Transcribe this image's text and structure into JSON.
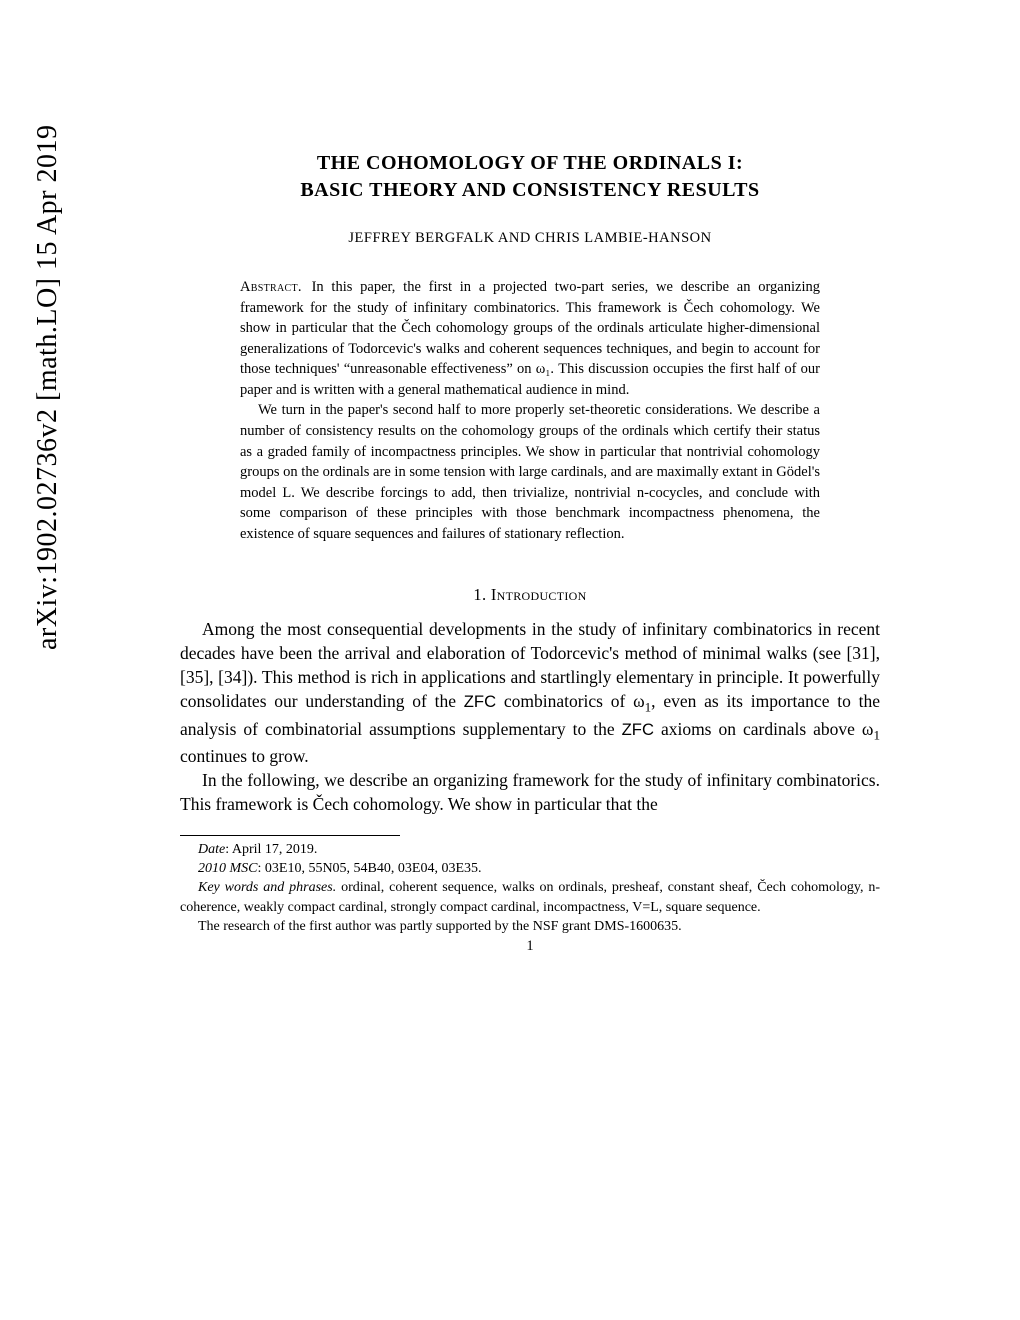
{
  "arxiv": {
    "id": "arXiv:1902.02736v2",
    "category": "[math.LO]",
    "date": "15 Apr 2019"
  },
  "title_line1": "THE COHOMOLOGY OF THE ORDINALS I:",
  "title_line2": "BASIC THEORY AND CONSISTENCY RESULTS",
  "authors": "JEFFREY BERGFALK AND CHRIS LAMBIE-HANSON",
  "abstract_label": "Abstract.",
  "abstract_p1": " In this paper, the first in a projected two-part series, we describe an organizing framework for the study of infinitary combinatorics. This framework is Čech cohomology. We show in particular that the Čech cohomology groups of the ordinals articulate higher-dimensional generalizations of Todorcevic's walks and coherent sequences techniques, and begin to account for those techniques' “unreasonable effectiveness” on ω₁. This discussion occupies the first half of our paper and is written with a general mathematical audience in mind.",
  "abstract_p2": "We turn in the paper's second half to more properly set-theoretic considerations. We describe a number of consistency results on the cohomology groups of the ordinals which certify their status as a graded family of incompactness principles. We show in particular that nontrivial cohomology groups on the ordinals are in some tension with large cardinals, and are maximally extant in Gödel's model L. We describe forcings to add, then trivialize, nontrivial n-cocycles, and conclude with some comparison of these principles with those benchmark incompactness phenomena, the existence of square sequences and failures of stationary reflection.",
  "section1_heading": "1. Introduction",
  "intro_p1_a": "Among the most consequential developments in the study of infinitary combinatorics in recent decades have been the arrival and elaboration of Todorcevic's method of minimal walks (see [31], [35], [34]). This method is rich in applications and startlingly elementary in principle. It powerfully consolidates our understanding of the ",
  "intro_p1_zfc1": "ZFC",
  "intro_p1_b": " combinatorics of ω",
  "intro_p1_sub1": "1",
  "intro_p1_c": ", even as its importance to the analysis of combinatorial assumptions supplementary to the ",
  "intro_p1_zfc2": "ZFC",
  "intro_p1_d": " axioms on cardinals above ω",
  "intro_p1_sub2": "1",
  "intro_p1_e": " continues to grow.",
  "intro_p2": "In the following, we describe an organizing framework for the study of infinitary combinatorics. This framework is Čech cohomology. We show in particular that the",
  "fn_date_label": "Date",
  "fn_date_value": ": April 17, 2019.",
  "fn_msc_label": "2010 MSC",
  "fn_msc_value": ": 03E10, 55N05, 54B40, 03E04, 03E35.",
  "fn_keywords_label": "Key words and phrases.",
  "fn_keywords_value": " ordinal, coherent sequence, walks on ordinals, presheaf, constant sheaf, Čech cohomology, n-coherence, weakly compact cardinal, strongly compact cardinal, incompactness, V=L, square sequence.",
  "fn_support": "The research of the first author was partly supported by the NSF grant DMS-1600635.",
  "page_number": "1",
  "colors": {
    "text": "#000000",
    "background": "#ffffff"
  }
}
